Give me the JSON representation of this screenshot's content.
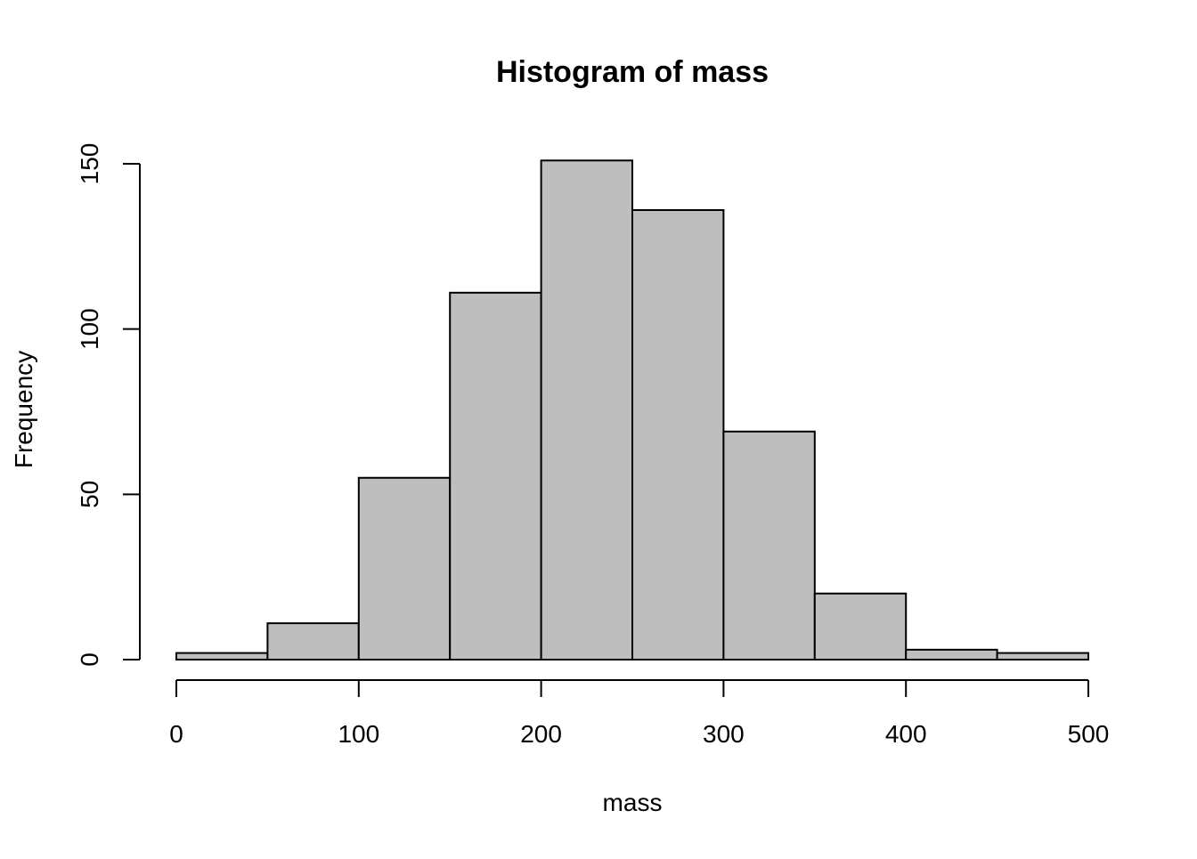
{
  "chart_data": {
    "type": "bar",
    "title": "Histogram of mass",
    "xlabel": "mass",
    "ylabel": "Frequency",
    "bins": [
      {
        "start": 0,
        "end": 50,
        "count": 2
      },
      {
        "start": 50,
        "end": 100,
        "count": 11
      },
      {
        "start": 100,
        "end": 150,
        "count": 55
      },
      {
        "start": 150,
        "end": 200,
        "count": 111
      },
      {
        "start": 200,
        "end": 250,
        "count": 151
      },
      {
        "start": 250,
        "end": 300,
        "count": 136
      },
      {
        "start": 300,
        "end": 350,
        "count": 69
      },
      {
        "start": 350,
        "end": 400,
        "count": 20
      },
      {
        "start": 400,
        "end": 450,
        "count": 3
      },
      {
        "start": 450,
        "end": 500,
        "count": 2
      }
    ],
    "xticks": [
      0,
      100,
      200,
      300,
      400,
      500
    ],
    "yticks": [
      0,
      50,
      100,
      150
    ],
    "xlim": [
      0,
      500
    ],
    "ylim": [
      0,
      150
    ],
    "bar_color": "#bebebe",
    "grid": false
  }
}
